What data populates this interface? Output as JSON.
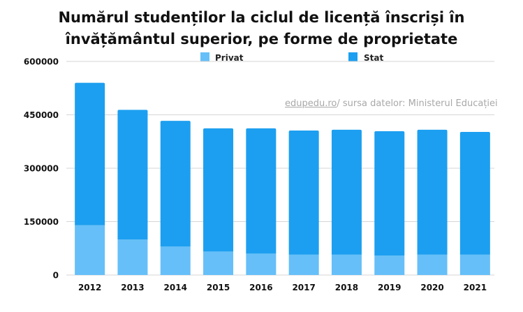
{
  "title": {
    "line1": "Numărul studenților la ciclul de licență înscriși în",
    "line2": "învățământul superior, pe forme de proprietate"
  },
  "source": {
    "link_text": "edupedu.ro",
    "text": "/ sursa datelor: Ministerul Educației"
  },
  "colors": {
    "privat": "#66bff8",
    "stat": "#1c9ff0",
    "grid": "#d6d6d6",
    "axis_text": "#111111"
  },
  "chart_data": {
    "type": "bar",
    "stacked": true,
    "categories": [
      "2012",
      "2013",
      "2014",
      "2015",
      "2016",
      "2017",
      "2018",
      "2019",
      "2020",
      "2021"
    ],
    "series": [
      {
        "name": "Privat",
        "values": [
          140000,
          100000,
          80000,
          66000,
          60000,
          57000,
          57000,
          55000,
          57000,
          57000
        ]
      },
      {
        "name": "Stat",
        "values": [
          400000,
          364000,
          353000,
          346000,
          352000,
          349000,
          351000,
          349000,
          351000,
          345000
        ]
      }
    ],
    "ylim": [
      0,
      600000
    ],
    "yticks": [
      "0",
      "150000",
      "300000",
      "450000",
      "600000"
    ],
    "ytick_values": [
      0,
      150000,
      300000,
      450000,
      600000
    ],
    "grid": true,
    "legend_position": "top"
  }
}
